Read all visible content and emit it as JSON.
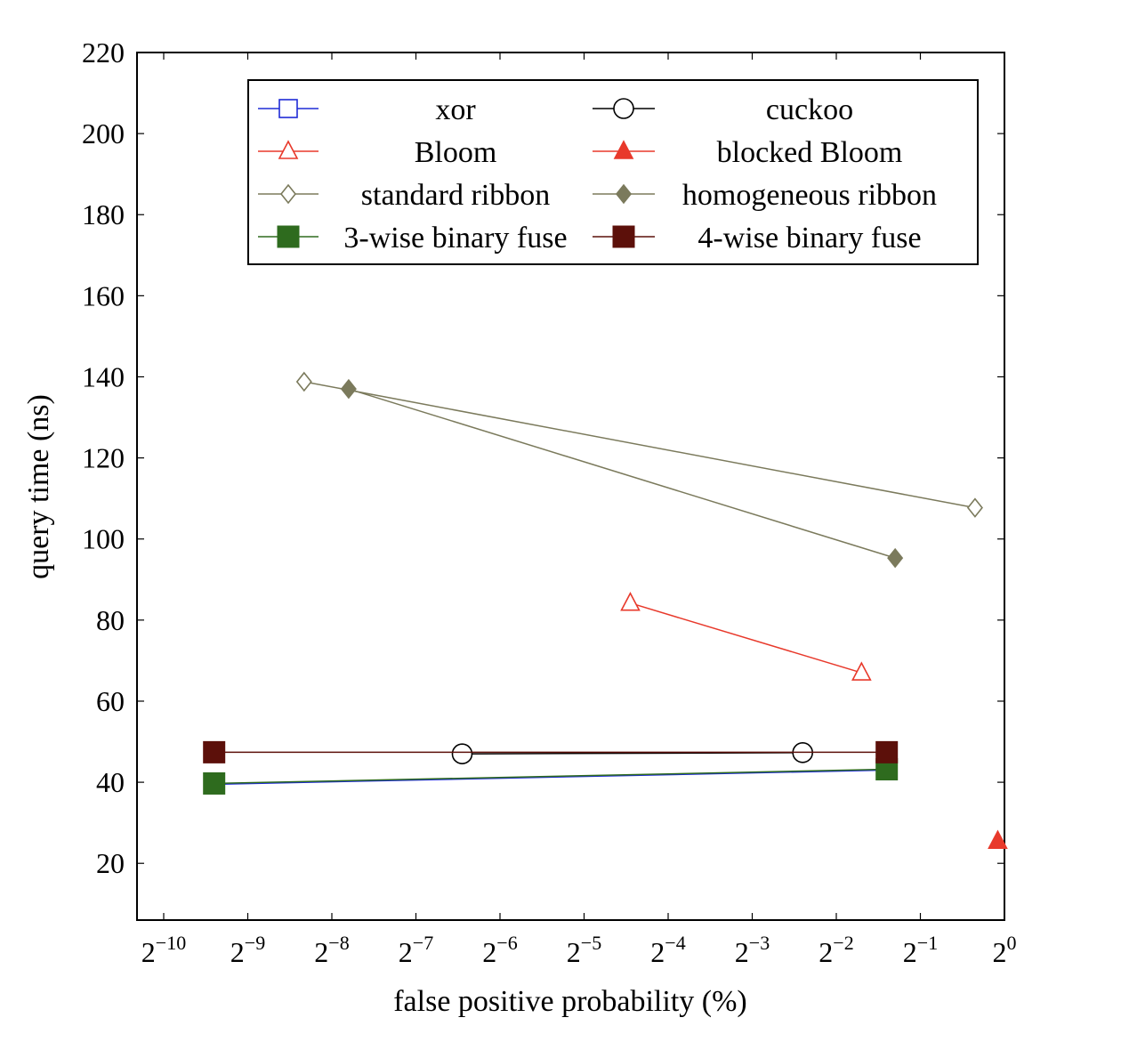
{
  "chart_data": {
    "type": "line",
    "title": "",
    "xlabel": "false positive probability (%)",
    "ylabel": "query time (ns)",
    "x_scale": "log2",
    "xlim_exponent": [
      -10,
      0
    ],
    "ylim": [
      6,
      220
    ],
    "x_ticks": [
      {
        "base": "2",
        "exp": "−10",
        "value": -10
      },
      {
        "base": "2",
        "exp": "−9",
        "value": -9
      },
      {
        "base": "2",
        "exp": "−8",
        "value": -8
      },
      {
        "base": "2",
        "exp": "−7",
        "value": -7
      },
      {
        "base": "2",
        "exp": "−6",
        "value": -6
      },
      {
        "base": "2",
        "exp": "−5",
        "value": -5
      },
      {
        "base": "2",
        "exp": "−4",
        "value": -4
      },
      {
        "base": "2",
        "exp": "−3",
        "value": -3
      },
      {
        "base": "2",
        "exp": "−2",
        "value": -2
      },
      {
        "base": "2",
        "exp": "−1",
        "value": -1
      },
      {
        "base": "2",
        "exp": "0",
        "value": 0
      }
    ],
    "y_ticks": [
      {
        "label": "20",
        "value": 20
      },
      {
        "label": "40",
        "value": 40
      },
      {
        "label": "60",
        "value": 60
      },
      {
        "label": "80",
        "value": 80
      },
      {
        "label": "100",
        "value": 100
      },
      {
        "label": "120",
        "value": 120
      },
      {
        "label": "140",
        "value": 140
      },
      {
        "label": "160",
        "value": 160
      },
      {
        "label": "180",
        "value": 180
      },
      {
        "label": "200",
        "value": 200
      },
      {
        "label": "220",
        "value": 220
      }
    ],
    "grid": false,
    "legend_position": "top-right",
    "series": [
      {
        "name": "xor",
        "color": "#1f2bd6",
        "marker": "square-open",
        "points": [
          {
            "x_exp": -9.4,
            "y": 39.5
          },
          {
            "x_exp": -1.4,
            "y": 43.0
          }
        ]
      },
      {
        "name": "cuckoo",
        "color": "#000000",
        "marker": "circle-open",
        "points": [
          {
            "x_exp": -6.45,
            "y": 47.0
          },
          {
            "x_exp": -2.4,
            "y": 47.3
          }
        ]
      },
      {
        "name": "Bloom",
        "color": "#e8392b",
        "marker": "triangle-open",
        "points": [
          {
            "x_exp": -4.45,
            "y": 84.2
          },
          {
            "x_exp": -1.7,
            "y": 67.0
          }
        ]
      },
      {
        "name": "blocked Bloom",
        "color": "#e8392b",
        "marker": "triangle-filled",
        "points": [
          {
            "x_exp": -0.08,
            "y": 25.5
          }
        ]
      },
      {
        "name": "standard ribbon",
        "color": "#7b7a5c",
        "marker": "diamond-open",
        "points": [
          {
            "x_exp": -8.33,
            "y": 138.8
          },
          {
            "x_exp": -0.35,
            "y": 107.7
          }
        ]
      },
      {
        "name": "homogeneous ribbon",
        "color": "#7b7a5c",
        "marker": "diamond-filled",
        "points": [
          {
            "x_exp": -7.8,
            "y": 137.0
          },
          {
            "x_exp": -1.3,
            "y": 95.3
          }
        ]
      },
      {
        "name": "3-wise binary fuse",
        "color": "#2e6b1e",
        "marker": "square-filled",
        "points": [
          {
            "x_exp": -9.4,
            "y": 39.7
          },
          {
            "x_exp": -1.4,
            "y": 43.2
          }
        ]
      },
      {
        "name": "4-wise binary fuse",
        "color": "#5c100a",
        "marker": "square-filled",
        "points": [
          {
            "x_exp": -9.4,
            "y": 47.4
          },
          {
            "x_exp": -1.4,
            "y": 47.4
          }
        ]
      }
    ]
  }
}
